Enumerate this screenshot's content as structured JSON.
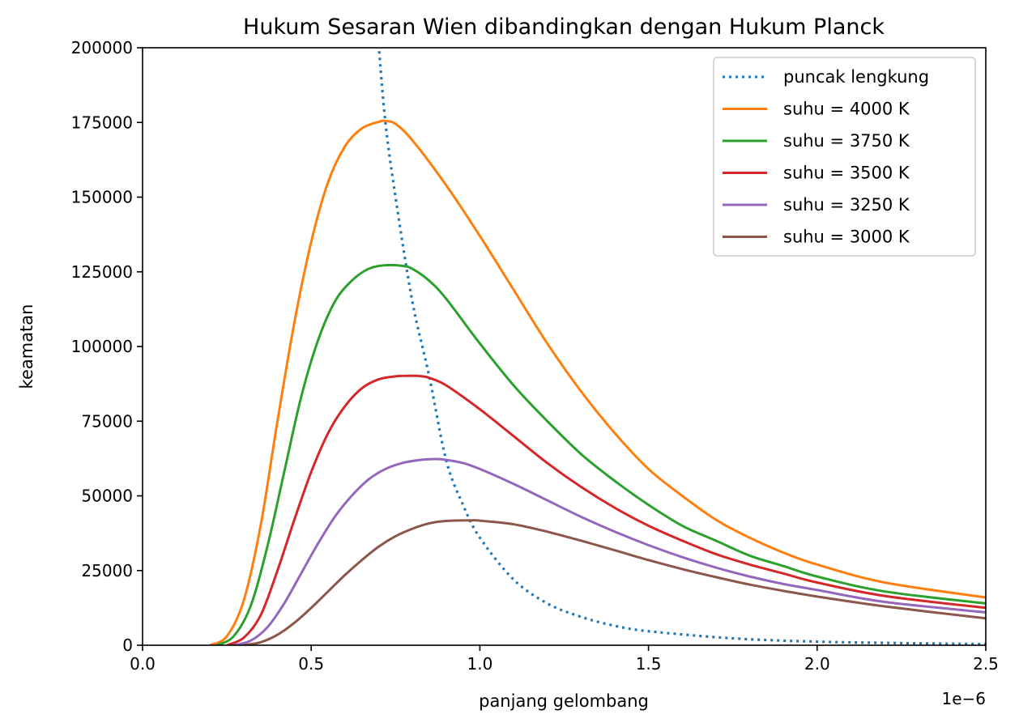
{
  "chart_data": {
    "type": "line",
    "title": "Hukum Sesaran Wien dibandingkan dengan Hukum Planck",
    "xlabel": "panjang gelombang",
    "ylabel": "keamatan",
    "x_offset_label": "1e−6",
    "xlim": [
      0,
      2.5e-06
    ],
    "ylim": [
      0,
      200000
    ],
    "x_ticks": [
      0,
      5e-07,
      1e-06,
      1.5e-06,
      2e-06,
      2.5e-06
    ],
    "x_tick_labels": [
      "0.0",
      "0.5",
      "1.0",
      "1.5",
      "2.0",
      "2.5"
    ],
    "y_ticks": [
      0,
      25000,
      50000,
      75000,
      100000,
      125000,
      150000,
      175000,
      200000
    ],
    "y_tick_labels": [
      "0",
      "25000",
      "50000",
      "75000",
      "100000",
      "125000",
      "150000",
      "175000",
      "200000"
    ],
    "grid": false,
    "legend_position": "top-right",
    "series": [
      {
        "name": "puncak lengkung",
        "color": "#1f77b4",
        "style": "dotted",
        "x": [
          7e-07,
          7.2e-07,
          7.5e-07,
          8e-07,
          8.5e-07,
          9e-07,
          9.5e-07,
          1e-06,
          1.1e-06,
          1.2e-06,
          1.3e-06,
          1.4e-06,
          1.5e-06,
          1.75e-06,
          2e-06,
          2.25e-06,
          2.5e-06
        ],
        "y": [
          201000,
          175000,
          150000,
          115000,
          90000,
          62000,
          47000,
          36000,
          22000,
          14000,
          9500,
          6500,
          4700,
          2300,
          1200,
          700,
          400
        ]
      },
      {
        "name": "suhu = 4000 K",
        "color": "#ff7f0e",
        "style": "solid",
        "x": [
          2e-07,
          2.5e-07,
          3e-07,
          3.5e-07,
          4e-07,
          4.5e-07,
          5e-07,
          5.5e-07,
          6e-07,
          6.5e-07,
          7e-07,
          7.2e-07,
          7.5e-07,
          8e-07,
          9e-07,
          1e-06,
          1.1e-06,
          1.2e-06,
          1.3e-06,
          1.4e-06,
          1.5e-06,
          1.6e-06,
          1.7e-06,
          1.8e-06,
          1.9e-06,
          2e-06,
          2.2e-06,
          2.5e-06
        ],
        "y": [
          0,
          3000,
          15000,
          40000,
          75000,
          108000,
          135000,
          155000,
          167000,
          173000,
          175200,
          175500,
          174500,
          169000,
          154000,
          137000,
          119000,
          101000,
          85000,
          71000,
          59000,
          50000,
          42000,
          36000,
          31000,
          27000,
          21000,
          16000
        ]
      },
      {
        "name": "suhu = 3750 K",
        "color": "#2ca02c",
        "style": "solid",
        "x": [
          2.2e-07,
          2.7e-07,
          3.2e-07,
          3.7e-07,
          4.2e-07,
          4.7e-07,
          5.2e-07,
          5.7e-07,
          6.2e-07,
          6.7e-07,
          7.2e-07,
          7.7e-07,
          8e-07,
          8.5e-07,
          9e-07,
          1e-06,
          1.1e-06,
          1.2e-06,
          1.3e-06,
          1.4e-06,
          1.5e-06,
          1.6e-06,
          1.7e-06,
          1.8e-06,
          1.9e-06,
          2e-06,
          2.2e-06,
          2.5e-06
        ],
        "y": [
          0,
          3000,
          13000,
          33000,
          58000,
          83000,
          102000,
          115000,
          122000,
          126000,
          127200,
          127000,
          126000,
          122000,
          116000,
          101000,
          87000,
          75000,
          64000,
          55000,
          47000,
          40000,
          35000,
          30000,
          26500,
          23000,
          18000,
          14000
        ]
      },
      {
        "name": "suhu = 3500 K",
        "color": "#d62728",
        "style": "solid",
        "x": [
          2.5e-07,
          3e-07,
          3.5e-07,
          4e-07,
          4.5e-07,
          5e-07,
          5.5e-07,
          6e-07,
          6.5e-07,
          7e-07,
          7.5e-07,
          8e-07,
          8.3e-07,
          8.5e-07,
          9e-07,
          1e-06,
          1.1e-06,
          1.2e-06,
          1.3e-06,
          1.4e-06,
          1.5e-06,
          1.6e-06,
          1.7e-06,
          1.8e-06,
          1.9e-06,
          2e-06,
          2.2e-06,
          2.5e-06
        ],
        "y": [
          0,
          2500,
          10000,
          25000,
          42000,
          58000,
          71000,
          80000,
          86000,
          89000,
          90000,
          90200,
          90000,
          89500,
          87000,
          79000,
          70000,
          61000,
          53000,
          46000,
          40000,
          35000,
          30500,
          27000,
          24000,
          21000,
          16500,
          12500
        ]
      },
      {
        "name": "suhu = 3250 K",
        "color": "#9467bd",
        "style": "solid",
        "x": [
          2.7e-07,
          3.2e-07,
          3.7e-07,
          4.2e-07,
          4.7e-07,
          5.2e-07,
          5.7e-07,
          6.2e-07,
          6.7e-07,
          7.2e-07,
          7.7e-07,
          8.2e-07,
          8.6e-07,
          8.9e-07,
          9.5e-07,
          1e-06,
          1.1e-06,
          1.2e-06,
          1.3e-06,
          1.4e-06,
          1.5e-06,
          1.6e-06,
          1.7e-06,
          1.8e-06,
          1.9e-06,
          2e-06,
          2.2e-06,
          2.5e-06
        ],
        "y": [
          0,
          1500,
          6000,
          14000,
          24000,
          34000,
          43000,
          50000,
          55500,
          59000,
          61000,
          62000,
          62300,
          62200,
          61000,
          59000,
          54000,
          48500,
          43000,
          38000,
          33500,
          29500,
          26000,
          23000,
          20500,
          18500,
          14500,
          11000
        ]
      },
      {
        "name": "suhu = 3000 K",
        "color": "#8c564b",
        "style": "solid",
        "x": [
          3e-07,
          3.5e-07,
          4e-07,
          4.5e-07,
          5e-07,
          5.5e-07,
          6e-07,
          6.5e-07,
          7e-07,
          7.5e-07,
          8e-07,
          8.5e-07,
          9e-07,
          9.7e-07,
          1e-06,
          1.1e-06,
          1.2e-06,
          1.3e-06,
          1.4e-06,
          1.5e-06,
          1.6e-06,
          1.7e-06,
          1.8e-06,
          1.9e-06,
          2e-06,
          2.2e-06,
          2.5e-06
        ],
        "y": [
          0,
          1000,
          3500,
          7500,
          12500,
          18000,
          23500,
          28500,
          33000,
          36500,
          39000,
          40800,
          41600,
          41800,
          41700,
          40500,
          38000,
          35000,
          31800,
          28500,
          25500,
          22800,
          20300,
          18200,
          16300,
          13000,
          9000
        ]
      }
    ]
  }
}
